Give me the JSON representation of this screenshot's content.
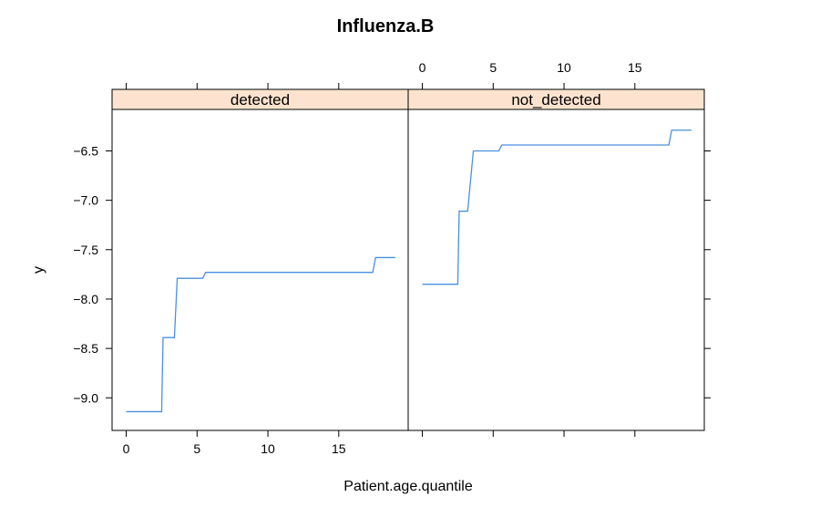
{
  "chart_data": {
    "type": "line",
    "title": "Influenza.B",
    "xlabel": "Patient.age.quantile",
    "ylabel": "y",
    "xlim": [
      -1,
      19.9
    ],
    "ylim": [
      -9.33,
      -6.08
    ],
    "x_ticks": [
      0,
      5,
      10,
      15
    ],
    "x_tick_labels": [
      "0",
      "5",
      "10",
      "15"
    ],
    "y_ticks": [
      -9.0,
      -8.5,
      -8.0,
      -7.5,
      -7.0,
      -6.5
    ],
    "y_tick_labels": [
      "-9.0",
      "-8.5",
      "-8.0",
      "-7.5",
      "-7.0",
      "-6.5"
    ],
    "grid": false,
    "line_color": "#4a90e2",
    "strip_color": "#fde3cf",
    "panels": [
      {
        "name": "detected",
        "x": [
          0,
          2.5,
          2.6,
          3.4,
          3.6,
          5.4,
          5.6,
          17.4,
          17.6,
          19
        ],
        "y": [
          -9.14,
          -9.14,
          -8.39,
          -8.39,
          -7.79,
          -7.79,
          -7.73,
          -7.73,
          -7.58,
          -7.58
        ]
      },
      {
        "name": "not_detected",
        "x": [
          0,
          2.5,
          2.6,
          3.2,
          3.6,
          5.4,
          5.6,
          17.4,
          17.6,
          19
        ],
        "y": [
          -7.85,
          -7.85,
          -7.11,
          -7.11,
          -6.5,
          -6.5,
          -6.44,
          -6.44,
          -6.29,
          -6.29
        ]
      }
    ]
  }
}
